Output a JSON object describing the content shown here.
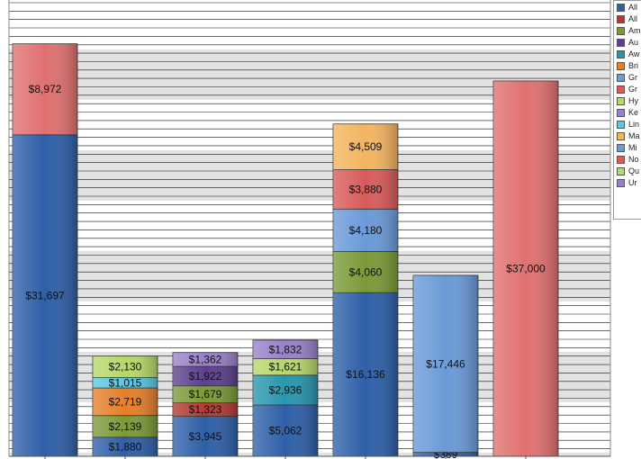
{
  "chart_data": {
    "type": "bar",
    "stacked": true,
    "ylim": [
      0,
      42000
    ],
    "grid": true,
    "legend_position": "top-right",
    "legend": [
      {
        "label": "All",
        "color": "#2e5fa8"
      },
      {
        "label": "All",
        "color": "#b23a34"
      },
      {
        "label": "Am",
        "color": "#7a9a37"
      },
      {
        "label": "Au",
        "color": "#5e3f8c"
      },
      {
        "label": "Aw",
        "color": "#2896ad"
      },
      {
        "label": "Bri",
        "color": "#e57f2a"
      },
      {
        "label": "Gr",
        "color": "#6a9ad8"
      },
      {
        "label": "Gr",
        "color": "#d95b5b"
      },
      {
        "label": "Hy",
        "color": "#b5d86a"
      },
      {
        "label": "Ke",
        "color": "#9a80c8"
      },
      {
        "label": "Lin",
        "color": "#58c8e6"
      },
      {
        "label": "Ma",
        "color": "#f3b460"
      },
      {
        "label": "Mi",
        "color": "#6a9ad8"
      },
      {
        "label": "No",
        "color": "#d95b5b"
      },
      {
        "label": "Qu",
        "color": "#b5d86a"
      },
      {
        "label": "Ur",
        "color": "#9a80c8"
      }
    ],
    "bars": [
      {
        "segments": [
          {
            "value": 31697,
            "label": "$31,697",
            "color": "#2e5fa8"
          },
          {
            "value": 8972,
            "label": "$8,972",
            "color": "#e07070"
          }
        ]
      },
      {
        "segments": [
          {
            "value": 1880,
            "label": "$1,880",
            "color": "#2e5fa8"
          },
          {
            "value": 2139,
            "label": "$2,139",
            "color": "#7a9a37"
          },
          {
            "value": 2719,
            "label": "$2,719",
            "color": "#e57f2a"
          },
          {
            "value": 1015,
            "label": "$1,015",
            "color": "#58c8e6"
          },
          {
            "value": 2130,
            "label": "$2,130",
            "color": "#b5d86a"
          }
        ]
      },
      {
        "segments": [
          {
            "value": 3945,
            "label": "$3,945",
            "color": "#2e5fa8"
          },
          {
            "value": 1323,
            "label": "$1,323",
            "color": "#b23a34"
          },
          {
            "value": 1679,
            "label": "$1,679",
            "color": "#7a9a37"
          },
          {
            "value": 1922,
            "label": "$1,922",
            "color": "#5e3f8c"
          },
          {
            "value": 1362,
            "label": "$1,362",
            "color": "#9a80c8"
          }
        ]
      },
      {
        "segments": [
          {
            "value": 5062,
            "label": "$5,062",
            "color": "#2e5fa8"
          },
          {
            "value": 2936,
            "label": "$2,936",
            "color": "#2896ad"
          },
          {
            "value": 1621,
            "label": "$1,621",
            "color": "#b5d86a"
          },
          {
            "value": 1832,
            "label": "$1,832",
            "color": "#9a80c8"
          }
        ]
      },
      {
        "segments": [
          {
            "value": 16136,
            "label": "$16,136",
            "color": "#2e5fa8"
          },
          {
            "value": 4060,
            "label": "$4,060",
            "color": "#7a9a37"
          },
          {
            "value": 4180,
            "label": "$4,180",
            "color": "#6a9ad8"
          },
          {
            "value": 3880,
            "label": "$3,880",
            "color": "#d95b5b"
          },
          {
            "value": 4509,
            "label": "$4,509",
            "color": "#f3b460"
          }
        ]
      },
      {
        "segments": [
          {
            "value": 389,
            "label": "$389",
            "color": "#2e5fa8"
          },
          {
            "value": 17446,
            "label": "$17,446",
            "color": "#6a9ad8"
          }
        ]
      },
      {
        "segments": [
          {
            "value": 37000,
            "label": "$37,000",
            "color": "#e07070"
          }
        ]
      }
    ]
  }
}
